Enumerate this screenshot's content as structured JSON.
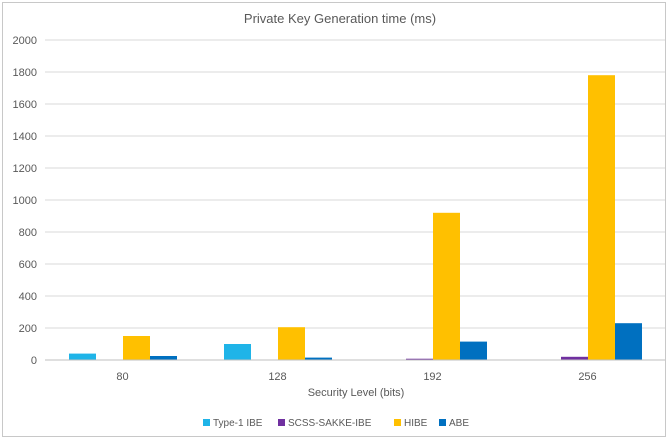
{
  "chart_data": {
    "type": "bar",
    "title": "Private Key Generation time (ms)",
    "xlabel": "Security Level (bits)",
    "ylabel": "",
    "categories": [
      "80",
      "128",
      "192",
      "256"
    ],
    "ylim": [
      0,
      2000
    ],
    "yticks": [
      0,
      200,
      400,
      600,
      800,
      1000,
      1200,
      1400,
      1600,
      1800,
      2000
    ],
    "grid": true,
    "legend_position": "bottom",
    "series": [
      {
        "name": "Type-1 IBE",
        "color": "#1FB4E8",
        "values": [
          40,
          100,
          0,
          0
        ]
      },
      {
        "name": "SCSS-SAKKE-IBE",
        "color": "#7030A0",
        "values": [
          0,
          0,
          8,
          20
        ]
      },
      {
        "name": "HIBE",
        "color": "#FFC000",
        "values": [
          150,
          205,
          920,
          1780
        ]
      },
      {
        "name": "ABE",
        "color": "#0070C0",
        "values": [
          25,
          15,
          115,
          230
        ]
      }
    ]
  }
}
